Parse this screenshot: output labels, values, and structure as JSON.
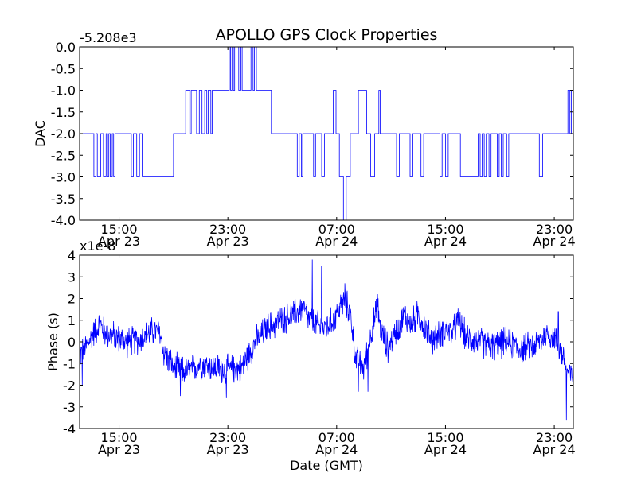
{
  "figure": {
    "title": "APOLLO GPS Clock Properties",
    "xlabel": "Date (GMT)"
  },
  "chart_data": [
    {
      "type": "line",
      "title": "APOLLO GPS Clock Properties",
      "xlabel": "",
      "ylabel": "DAC",
      "offset_text": "-5.208e3",
      "ylim": [
        -4.0,
        0.0
      ],
      "yticks": [
        "0.0",
        "-0.5",
        "-1.0",
        "-1.5",
        "-2.0",
        "-2.5",
        "-3.0",
        "-3.5",
        "-4.0"
      ],
      "ytick_values": [
        0.0,
        -0.5,
        -1.0,
        -1.5,
        -2.0,
        -2.5,
        -3.0,
        -3.5,
        -4.0
      ],
      "xlim": [
        "Apr 23 12:05",
        "Apr 25 00:25"
      ],
      "xticks": [
        {
          "time": "15:00",
          "date": "Apr 23"
        },
        {
          "time": "23:00",
          "date": "Apr 23"
        },
        {
          "time": "07:00",
          "date": "Apr 24"
        },
        {
          "time": "15:00",
          "date": "Apr 24"
        },
        {
          "time": "23:00",
          "date": "Apr 24"
        }
      ],
      "xtick_hours": [
        15,
        23,
        31,
        39,
        47
      ],
      "x_hours_range": [
        12.1,
        48.4
      ],
      "color": "#0000ff",
      "series": [
        {
          "steps": [
            [
              12.1,
              -2.0
            ],
            [
              13.15,
              -3.0
            ],
            [
              13.3,
              -2.0
            ],
            [
              13.4,
              -3.0
            ],
            [
              13.65,
              -2.0
            ],
            [
              13.85,
              -3.0
            ],
            [
              14.05,
              -2.0
            ],
            [
              14.15,
              -3.0
            ],
            [
              14.25,
              -2.0
            ],
            [
              14.35,
              -3.0
            ],
            [
              14.5,
              -2.0
            ],
            [
              14.6,
              -3.0
            ],
            [
              14.7,
              -2.0
            ],
            [
              15.9,
              -3.0
            ],
            [
              16.05,
              -2.0
            ],
            [
              16.3,
              -3.0
            ],
            [
              16.5,
              -2.0
            ],
            [
              16.7,
              -3.0
            ],
            [
              19.0,
              -2.0
            ],
            [
              19.9,
              -1.0
            ],
            [
              20.2,
              -2.0
            ],
            [
              20.3,
              -1.0
            ],
            [
              20.7,
              -2.0
            ],
            [
              20.9,
              -1.0
            ],
            [
              21.1,
              -2.0
            ],
            [
              21.3,
              -1.0
            ],
            [
              21.45,
              -2.0
            ],
            [
              21.55,
              -1.0
            ],
            [
              21.75,
              -2.0
            ],
            [
              21.85,
              -1.0
            ],
            [
              23.1,
              0.0
            ],
            [
              23.2,
              -1.0
            ],
            [
              23.3,
              0.0
            ],
            [
              23.4,
              -1.0
            ],
            [
              23.5,
              0.0
            ],
            [
              23.8,
              -1.0
            ],
            [
              23.95,
              0.0
            ],
            [
              24.05,
              -1.0
            ],
            [
              24.7,
              0.0
            ],
            [
              24.85,
              -1.0
            ],
            [
              24.95,
              0.0
            ],
            [
              25.1,
              -1.0
            ],
            [
              26.2,
              -2.0
            ],
            [
              28.1,
              -3.0
            ],
            [
              28.25,
              -2.0
            ],
            [
              28.4,
              -3.0
            ],
            [
              28.5,
              -2.0
            ],
            [
              29.3,
              -3.0
            ],
            [
              29.45,
              -2.0
            ],
            [
              29.9,
              -3.0
            ],
            [
              30.1,
              -2.0
            ],
            [
              30.75,
              -1.0
            ],
            [
              30.95,
              -2.0
            ],
            [
              31.2,
              -3.0
            ],
            [
              31.5,
              -4.0
            ],
            [
              31.7,
              -3.0
            ],
            [
              32.0,
              -2.0
            ],
            [
              32.6,
              -1.0
            ],
            [
              33.2,
              -2.0
            ],
            [
              33.5,
              -3.0
            ],
            [
              33.8,
              -2.0
            ],
            [
              34.1,
              -1.0
            ],
            [
              34.2,
              -2.0
            ],
            [
              35.4,
              -3.0
            ],
            [
              35.6,
              -2.0
            ],
            [
              36.4,
              -3.0
            ],
            [
              36.6,
              -2.0
            ],
            [
              37.2,
              -3.0
            ],
            [
              37.4,
              -2.0
            ],
            [
              38.6,
              -3.0
            ],
            [
              38.75,
              -2.0
            ],
            [
              39.0,
              -3.0
            ],
            [
              39.2,
              -2.0
            ],
            [
              40.1,
              -3.0
            ],
            [
              41.4,
              -2.0
            ],
            [
              41.55,
              -3.0
            ],
            [
              41.7,
              -2.0
            ],
            [
              41.85,
              -3.0
            ],
            [
              42.0,
              -2.0
            ],
            [
              42.2,
              -3.0
            ],
            [
              42.35,
              -2.0
            ],
            [
              42.8,
              -3.0
            ],
            [
              42.95,
              -2.0
            ],
            [
              43.1,
              -3.0
            ],
            [
              43.25,
              -2.0
            ],
            [
              43.5,
              -3.0
            ],
            [
              43.65,
              -2.0
            ],
            [
              45.9,
              -3.0
            ],
            [
              46.15,
              -2.0
            ],
            [
              48.0,
              -1.0
            ],
            [
              48.15,
              -2.0
            ],
            [
              48.25,
              -1.0
            ],
            [
              48.4,
              -1.0
            ]
          ]
        }
      ]
    },
    {
      "type": "line",
      "xlabel": "Date (GMT)",
      "ylabel": "Phase (s)",
      "offset_text": "x1e-8",
      "ylim": [
        -4,
        4
      ],
      "yticks": [
        "4",
        "3",
        "2",
        "1",
        "0",
        "-1",
        "-2",
        "-3",
        "-4"
      ],
      "ytick_values": [
        4,
        3,
        2,
        1,
        0,
        -1,
        -2,
        -3,
        -4
      ],
      "xlim": [
        "Apr 23 12:05",
        "Apr 25 00:25"
      ],
      "xticks": [
        {
          "time": "15:00",
          "date": "Apr 23"
        },
        {
          "time": "23:00",
          "date": "Apr 23"
        },
        {
          "time": "07:00",
          "date": "Apr 24"
        },
        {
          "time": "15:00",
          "date": "Apr 24"
        },
        {
          "time": "23:00",
          "date": "Apr 24"
        }
      ],
      "xtick_hours": [
        15,
        23,
        31,
        39,
        47
      ],
      "x_hours_range": [
        12.1,
        48.4
      ],
      "color": "#0000ff",
      "series": [
        {
          "trend": [
            [
              12.1,
              -0.6
            ],
            [
              12.6,
              -0.2
            ],
            [
              13.2,
              0.5
            ],
            [
              13.6,
              0.8
            ],
            [
              14.0,
              0.4
            ],
            [
              14.5,
              0.3
            ],
            [
              15.5,
              0.0
            ],
            [
              16.5,
              0.1
            ],
            [
              17.5,
              0.5
            ],
            [
              18.0,
              0.4
            ],
            [
              18.3,
              -0.5
            ],
            [
              19.0,
              -1.2
            ],
            [
              20.0,
              -1.4
            ],
            [
              21.0,
              -1.0
            ],
            [
              22.0,
              -1.2
            ],
            [
              23.0,
              -1.3
            ],
            [
              24.0,
              -1.2
            ],
            [
              25.0,
              0.0
            ],
            [
              26.0,
              0.7
            ],
            [
              27.0,
              1.0
            ],
            [
              28.0,
              1.3
            ],
            [
              28.5,
              1.6
            ],
            [
              29.0,
              1.0
            ],
            [
              30.0,
              0.6
            ],
            [
              30.5,
              0.8
            ],
            [
              31.0,
              1.3
            ],
            [
              31.5,
              1.9
            ],
            [
              32.0,
              1.4
            ],
            [
              32.4,
              -0.8
            ],
            [
              33.0,
              -1.2
            ],
            [
              33.5,
              0.3
            ],
            [
              34.0,
              1.6
            ],
            [
              34.3,
              0.4
            ],
            [
              34.8,
              -0.3
            ],
            [
              35.3,
              0.4
            ],
            [
              36.0,
              1.2
            ],
            [
              36.5,
              0.8
            ],
            [
              37.0,
              1.3
            ],
            [
              37.5,
              0.6
            ],
            [
              38.0,
              0.1
            ],
            [
              38.5,
              0.3
            ],
            [
              39.0,
              0.6
            ],
            [
              39.5,
              0.4
            ],
            [
              40.0,
              1.0
            ],
            [
              40.5,
              0.2
            ],
            [
              41.5,
              0.0
            ],
            [
              42.5,
              -0.2
            ],
            [
              43.5,
              0.0
            ],
            [
              44.5,
              -0.3
            ],
            [
              45.5,
              -0.2
            ],
            [
              46.5,
              0.4
            ],
            [
              47.0,
              0.2
            ],
            [
              47.6,
              -0.6
            ],
            [
              48.0,
              -1.4
            ],
            [
              48.4,
              -1.7
            ]
          ],
          "noise": 0.55,
          "spikes": [
            {
              "x": 29.2,
              "y": 3.8
            },
            {
              "x": 29.9,
              "y": 3.5
            },
            {
              "x": 31.6,
              "y": 2.7
            },
            {
              "x": 32.6,
              "y": -2.3
            },
            {
              "x": 34.0,
              "y": 2.2
            },
            {
              "x": 33.3,
              "y": -2.3
            },
            {
              "x": 19.5,
              "y": -2.5
            },
            {
              "x": 22.9,
              "y": -2.6
            },
            {
              "x": 47.9,
              "y": -3.6
            },
            {
              "x": 12.3,
              "y": -2.0
            },
            {
              "x": 47.3,
              "y": 1.4
            }
          ]
        }
      ]
    }
  ]
}
